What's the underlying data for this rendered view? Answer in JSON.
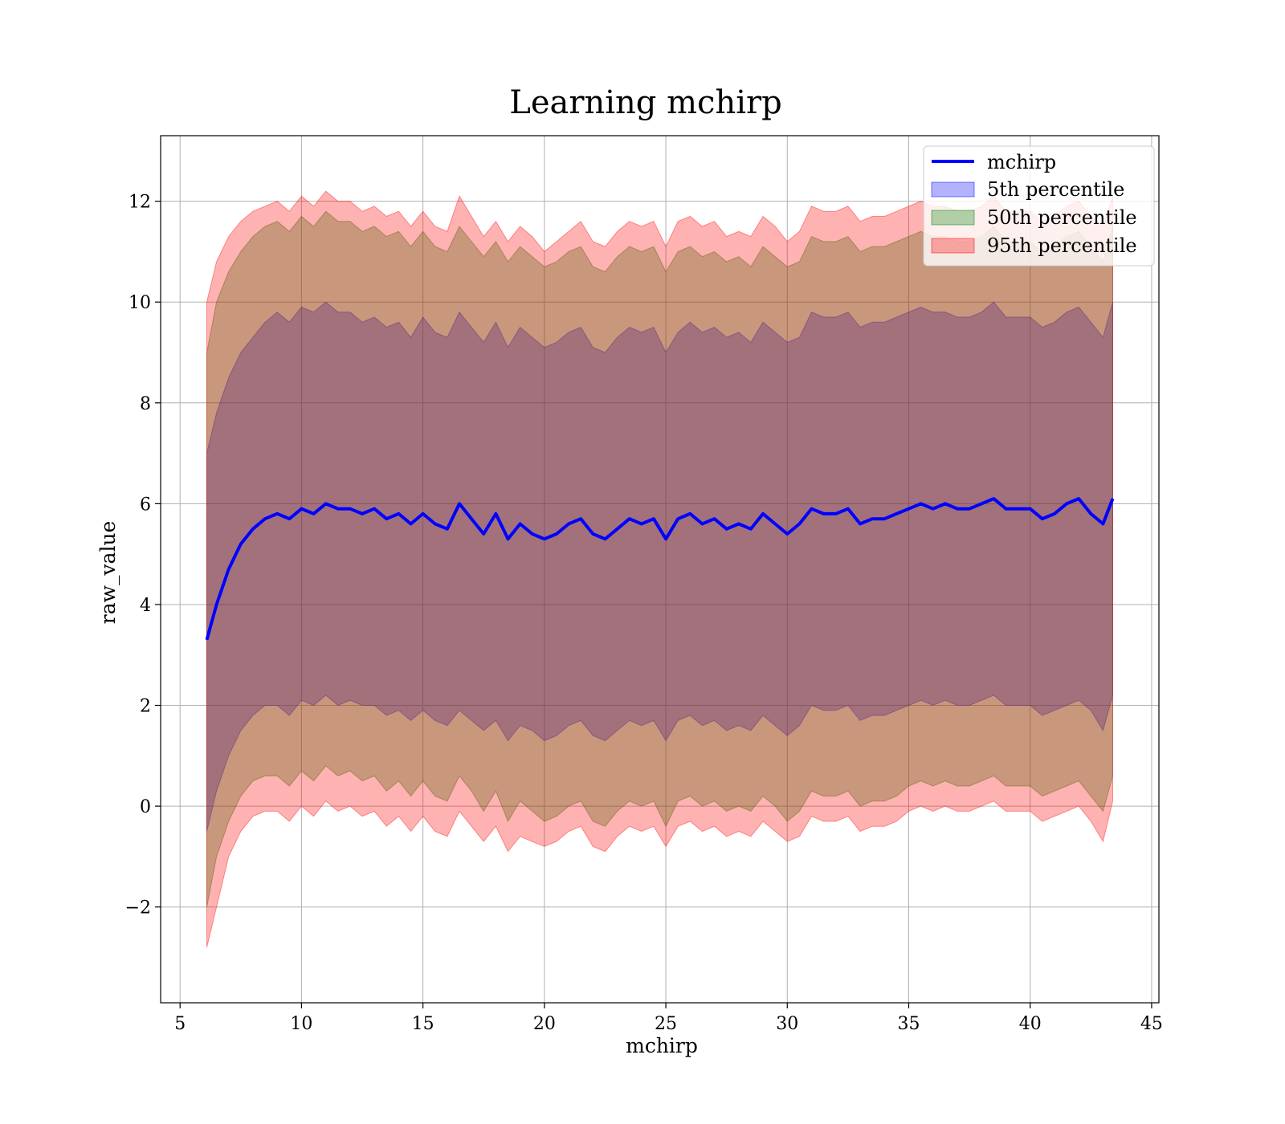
{
  "chart_data": {
    "type": "line",
    "title": "Learning mchirp",
    "xlabel": "mchirp",
    "ylabel": "raw_value",
    "xlim": [
      4.2,
      45.3
    ],
    "ylim": [
      -3.9,
      13.3
    ],
    "xticks": [
      5,
      10,
      15,
      20,
      25,
      30,
      35,
      40,
      45
    ],
    "yticks": [
      -2,
      0,
      2,
      4,
      6,
      8,
      10,
      12
    ],
    "ytick_labels": [
      "−2",
      "0",
      "2",
      "4",
      "6",
      "8",
      "10",
      "12"
    ],
    "grid": true,
    "legend_position": "upper right",
    "x": [
      6.1,
      6.5,
      7.0,
      7.5,
      8.0,
      8.5,
      9.0,
      9.5,
      10.0,
      10.5,
      11.0,
      11.5,
      12.0,
      12.5,
      13.0,
      13.5,
      14.0,
      14.5,
      15.0,
      15.5,
      16.0,
      16.5,
      17.0,
      17.5,
      18.0,
      18.5,
      19.0,
      19.5,
      20.0,
      20.5,
      21.0,
      21.5,
      22.0,
      22.5,
      23.0,
      23.5,
      24.0,
      24.5,
      25.0,
      25.5,
      26.0,
      26.5,
      27.0,
      27.5,
      28.0,
      28.5,
      29.0,
      29.5,
      30.0,
      30.5,
      31.0,
      31.5,
      32.0,
      32.5,
      33.0,
      33.5,
      34.0,
      34.5,
      35.0,
      35.5,
      36.0,
      36.5,
      37.0,
      37.5,
      38.0,
      38.5,
      39.0,
      39.5,
      40.0,
      40.5,
      41.0,
      41.5,
      42.0,
      42.5,
      43.0,
      43.4
    ],
    "series": [
      {
        "name": "mchirp",
        "color": "#0000ff",
        "values": [
          3.3,
          4.0,
          4.7,
          5.2,
          5.5,
          5.7,
          5.8,
          5.7,
          5.9,
          5.8,
          6.0,
          5.9,
          5.9,
          5.8,
          5.9,
          5.7,
          5.8,
          5.6,
          5.8,
          5.6,
          5.5,
          6.0,
          5.7,
          5.4,
          5.8,
          5.3,
          5.6,
          5.4,
          5.3,
          5.4,
          5.6,
          5.7,
          5.4,
          5.3,
          5.5,
          5.7,
          5.6,
          5.7,
          5.3,
          5.7,
          5.8,
          5.6,
          5.7,
          5.5,
          5.6,
          5.5,
          5.8,
          5.6,
          5.4,
          5.6,
          5.9,
          5.8,
          5.8,
          5.9,
          5.6,
          5.7,
          5.7,
          5.8,
          5.9,
          6.0,
          5.9,
          6.0,
          5.9,
          5.9,
          6.0,
          6.1,
          5.9,
          5.9,
          5.9,
          5.7,
          5.8,
          6.0,
          6.1,
          5.8,
          5.6,
          6.1
        ]
      }
    ],
    "bands": [
      {
        "name": "5th percentile",
        "color": "#0000ff",
        "fill_opacity": 0.3,
        "lower": [
          -0.5,
          0.3,
          1.0,
          1.5,
          1.8,
          2.0,
          2.0,
          1.8,
          2.1,
          2.0,
          2.2,
          2.0,
          2.1,
          2.0,
          2.0,
          1.8,
          1.9,
          1.7,
          1.9,
          1.7,
          1.6,
          1.9,
          1.7,
          1.5,
          1.7,
          1.3,
          1.6,
          1.5,
          1.3,
          1.4,
          1.6,
          1.7,
          1.4,
          1.3,
          1.5,
          1.7,
          1.6,
          1.7,
          1.3,
          1.7,
          1.8,
          1.6,
          1.7,
          1.5,
          1.6,
          1.5,
          1.8,
          1.6,
          1.4,
          1.6,
          2.0,
          1.9,
          1.9,
          2.0,
          1.7,
          1.8,
          1.8,
          1.9,
          2.0,
          2.1,
          2.0,
          2.1,
          2.0,
          2.0,
          2.1,
          2.2,
          2.0,
          2.0,
          2.0,
          1.8,
          1.9,
          2.0,
          2.1,
          1.9,
          1.5,
          2.2
        ],
        "upper": [
          7.0,
          7.8,
          8.5,
          9.0,
          9.3,
          9.6,
          9.8,
          9.6,
          9.9,
          9.8,
          10.0,
          9.8,
          9.8,
          9.6,
          9.7,
          9.5,
          9.6,
          9.3,
          9.7,
          9.4,
          9.3,
          9.8,
          9.5,
          9.2,
          9.6,
          9.1,
          9.5,
          9.3,
          9.1,
          9.2,
          9.4,
          9.5,
          9.1,
          9.0,
          9.3,
          9.5,
          9.4,
          9.5,
          9.0,
          9.4,
          9.6,
          9.4,
          9.5,
          9.3,
          9.4,
          9.2,
          9.6,
          9.4,
          9.2,
          9.3,
          9.8,
          9.7,
          9.7,
          9.8,
          9.5,
          9.6,
          9.6,
          9.7,
          9.8,
          9.9,
          9.8,
          9.8,
          9.7,
          9.7,
          9.8,
          10.0,
          9.7,
          9.7,
          9.7,
          9.5,
          9.6,
          9.8,
          9.9,
          9.6,
          9.3,
          10.0
        ]
      },
      {
        "name": "50th percentile",
        "color": "#008000",
        "fill_opacity": 0.3,
        "lower": [
          -2.0,
          -1.0,
          -0.3,
          0.2,
          0.5,
          0.6,
          0.6,
          0.4,
          0.7,
          0.5,
          0.8,
          0.6,
          0.7,
          0.5,
          0.6,
          0.3,
          0.5,
          0.2,
          0.5,
          0.2,
          0.1,
          0.6,
          0.3,
          -0.1,
          0.3,
          -0.3,
          0.1,
          -0.1,
          -0.3,
          -0.2,
          0.0,
          0.1,
          -0.3,
          -0.4,
          -0.1,
          0.1,
          0.0,
          0.1,
          -0.4,
          0.1,
          0.2,
          0.0,
          0.1,
          -0.1,
          0.0,
          -0.1,
          0.2,
          0.0,
          -0.3,
          -0.1,
          0.3,
          0.2,
          0.2,
          0.3,
          0.0,
          0.1,
          0.1,
          0.2,
          0.4,
          0.5,
          0.4,
          0.5,
          0.4,
          0.4,
          0.5,
          0.6,
          0.4,
          0.4,
          0.4,
          0.2,
          0.3,
          0.4,
          0.5,
          0.2,
          -0.1,
          0.6
        ],
        "upper": [
          9.0,
          10.0,
          10.6,
          11.0,
          11.3,
          11.5,
          11.6,
          11.4,
          11.7,
          11.5,
          11.8,
          11.6,
          11.6,
          11.4,
          11.5,
          11.3,
          11.4,
          11.1,
          11.4,
          11.1,
          11.0,
          11.5,
          11.2,
          10.9,
          11.2,
          10.8,
          11.1,
          10.9,
          10.7,
          10.8,
          11.0,
          11.1,
          10.7,
          10.6,
          10.9,
          11.1,
          11.0,
          11.1,
          10.6,
          11.0,
          11.1,
          10.9,
          11.0,
          10.8,
          10.9,
          10.7,
          11.1,
          10.9,
          10.7,
          10.8,
          11.3,
          11.2,
          11.2,
          11.3,
          11.0,
          11.1,
          11.1,
          11.2,
          11.3,
          11.4,
          11.3,
          11.3,
          11.2,
          11.2,
          11.3,
          11.5,
          11.2,
          11.2,
          11.2,
          11.0,
          11.1,
          11.3,
          11.4,
          11.1,
          10.8,
          11.5
        ]
      },
      {
        "name": "95th percentile",
        "color": "#ff0000",
        "fill_opacity": 0.3,
        "lower": [
          -2.8,
          -2.0,
          -1.0,
          -0.5,
          -0.2,
          -0.1,
          -0.1,
          -0.3,
          0.0,
          -0.2,
          0.1,
          -0.1,
          0.0,
          -0.2,
          -0.1,
          -0.4,
          -0.2,
          -0.5,
          -0.2,
          -0.5,
          -0.6,
          -0.1,
          -0.4,
          -0.7,
          -0.4,
          -0.9,
          -0.6,
          -0.7,
          -0.8,
          -0.7,
          -0.5,
          -0.4,
          -0.8,
          -0.9,
          -0.6,
          -0.4,
          -0.5,
          -0.4,
          -0.8,
          -0.4,
          -0.3,
          -0.5,
          -0.4,
          -0.6,
          -0.5,
          -0.6,
          -0.3,
          -0.5,
          -0.7,
          -0.6,
          -0.2,
          -0.3,
          -0.3,
          -0.2,
          -0.5,
          -0.4,
          -0.4,
          -0.3,
          -0.1,
          0.0,
          -0.1,
          0.0,
          -0.1,
          -0.1,
          0.0,
          0.1,
          -0.1,
          -0.1,
          -0.1,
          -0.3,
          -0.2,
          -0.1,
          0.0,
          -0.3,
          -0.7,
          0.1
        ],
        "upper": [
          10.0,
          10.8,
          11.3,
          11.6,
          11.8,
          11.9,
          12.0,
          11.8,
          12.1,
          11.9,
          12.2,
          12.0,
          12.0,
          11.8,
          11.9,
          11.7,
          11.8,
          11.5,
          11.8,
          11.5,
          11.4,
          12.1,
          11.7,
          11.3,
          11.6,
          11.2,
          11.5,
          11.3,
          11.0,
          11.2,
          11.4,
          11.6,
          11.2,
          11.1,
          11.4,
          11.6,
          11.5,
          11.6,
          11.1,
          11.6,
          11.7,
          11.5,
          11.6,
          11.3,
          11.4,
          11.3,
          11.7,
          11.5,
          11.2,
          11.4,
          11.9,
          11.8,
          11.8,
          11.9,
          11.6,
          11.7,
          11.7,
          11.8,
          11.9,
          12.0,
          11.9,
          11.9,
          11.8,
          11.8,
          11.9,
          12.1,
          11.8,
          11.8,
          11.8,
          11.6,
          11.7,
          11.9,
          12.0,
          11.7,
          11.5,
          12.1
        ]
      }
    ]
  }
}
